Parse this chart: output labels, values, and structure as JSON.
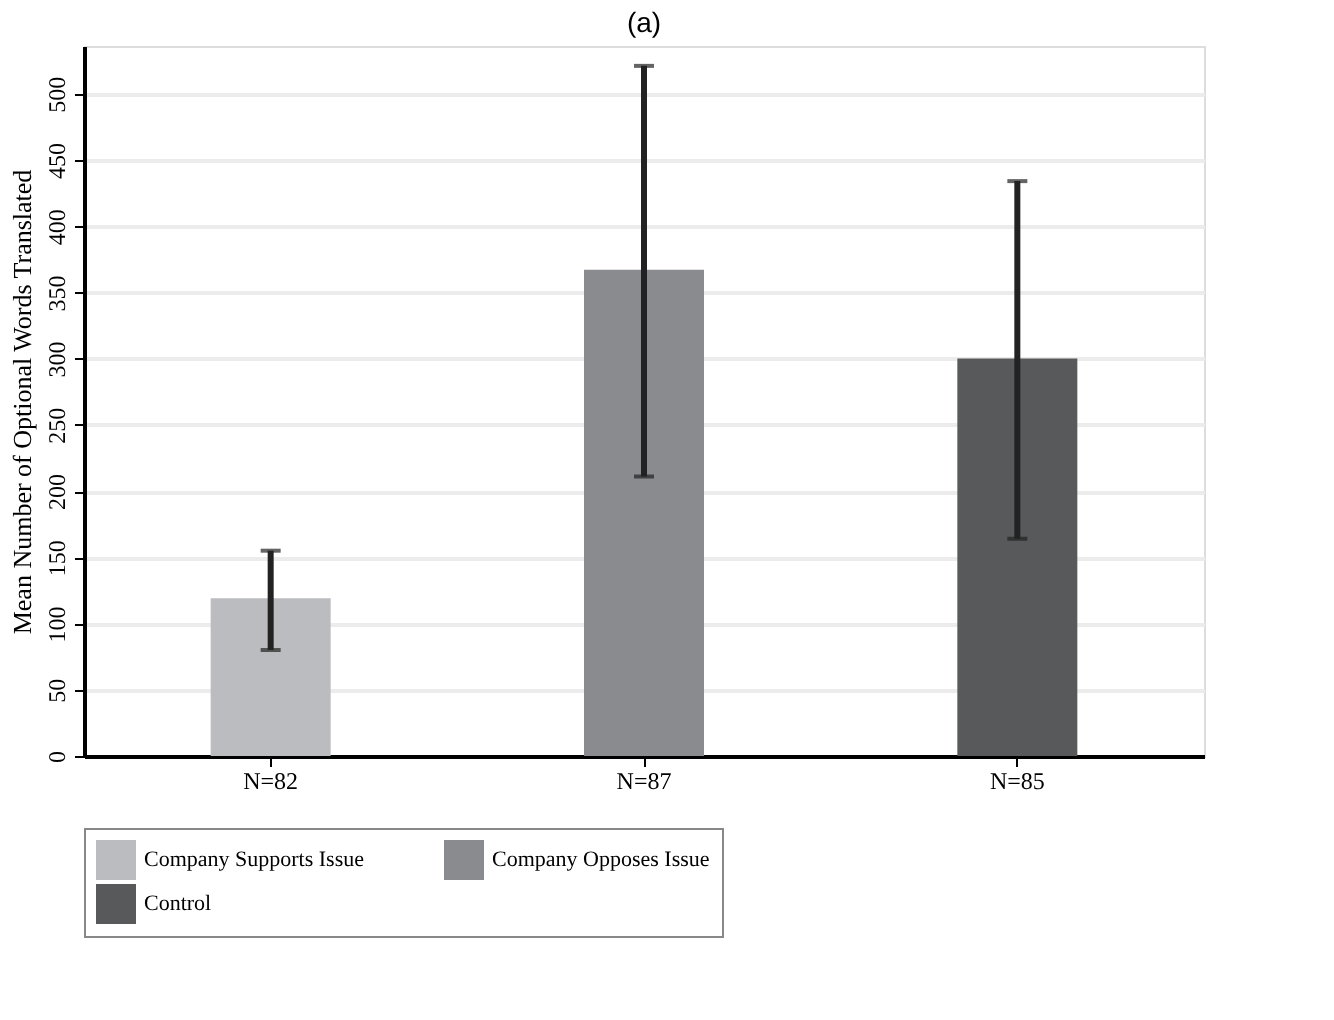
{
  "chart_data": {
    "type": "bar",
    "title": "(a)",
    "ylabel": "Mean Number of Optional Words Translated",
    "categories": [
      "N=82",
      "N=87",
      "N=85"
    ],
    "series": [
      {
        "name": "Company Supports Issue",
        "color": "#bbbcbf",
        "values": [
          119,
          null,
          null
        ],
        "errors": [
          [
            80,
            155
          ],
          null,
          null
        ]
      },
      {
        "name": "Company Opposes Issue",
        "color": "#8a8b8f",
        "values": [
          null,
          367,
          null
        ],
        "errors": [
          null,
          [
            211,
            521
          ],
          null
        ]
      },
      {
        "name": "Control",
        "color": "#58595b",
        "values": [
          null,
          null,
          300
        ],
        "errors": [
          null,
          null,
          [
            164,
            434
          ]
        ]
      }
    ],
    "ylim": [
      0,
      536
    ],
    "yticks": [
      0,
      50,
      100,
      150,
      200,
      250,
      300,
      350,
      400,
      450,
      500
    ],
    "grid": "y",
    "legend": "bottom"
  }
}
